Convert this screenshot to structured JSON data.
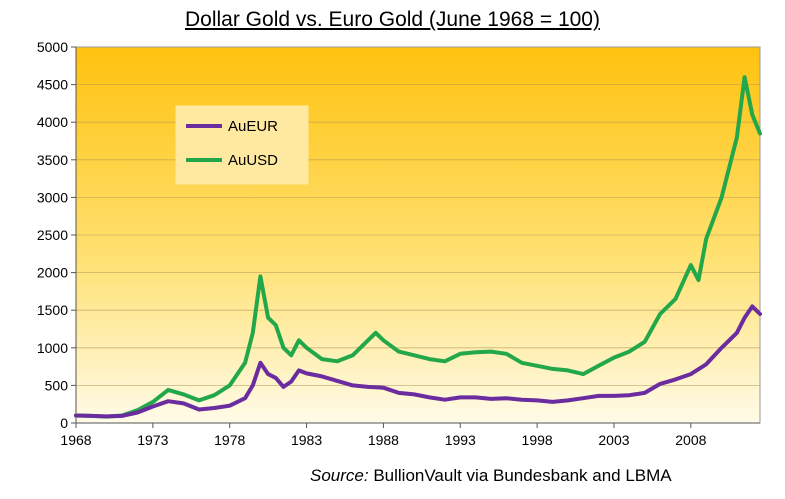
{
  "chart_data": {
    "type": "line",
    "title": "Dollar Gold vs. Euro Gold (June 1968 = 100)",
    "xlabel": "",
    "ylabel": "",
    "xlim": [
      1968,
      2012.5
    ],
    "ylim": [
      0,
      5000
    ],
    "x_ticks": [
      "1968",
      "1973",
      "1978",
      "1983",
      "1988",
      "1993",
      "1998",
      "2003",
      "2008"
    ],
    "y_ticks": [
      "0",
      "500",
      "1000",
      "1500",
      "2000",
      "2500",
      "3000",
      "3500",
      "4000",
      "4500",
      "5000"
    ],
    "grid": "horizontal",
    "legend_position": "top-left",
    "background": "yellow-gold gradient",
    "series": [
      {
        "name": "AuEUR",
        "color": "#6a2c9e",
        "points": [
          [
            1968,
            100
          ],
          [
            1969,
            95
          ],
          [
            1970,
            88
          ],
          [
            1971,
            95
          ],
          [
            1972,
            140
          ],
          [
            1973,
            220
          ],
          [
            1974,
            290
          ],
          [
            1975,
            260
          ],
          [
            1976,
            180
          ],
          [
            1977,
            200
          ],
          [
            1978,
            230
          ],
          [
            1979,
            330
          ],
          [
            1979.5,
            500
          ],
          [
            1980,
            800
          ],
          [
            1980.5,
            650
          ],
          [
            1981,
            600
          ],
          [
            1981.5,
            480
          ],
          [
            1982,
            550
          ],
          [
            1982.5,
            700
          ],
          [
            1983,
            660
          ],
          [
            1984,
            620
          ],
          [
            1985,
            560
          ],
          [
            1986,
            500
          ],
          [
            1987,
            480
          ],
          [
            1988,
            470
          ],
          [
            1989,
            400
          ],
          [
            1990,
            380
          ],
          [
            1991,
            340
          ],
          [
            1992,
            310
          ],
          [
            1993,
            340
          ],
          [
            1994,
            340
          ],
          [
            1995,
            320
          ],
          [
            1996,
            330
          ],
          [
            1997,
            310
          ],
          [
            1998,
            300
          ],
          [
            1999,
            280
          ],
          [
            2000,
            300
          ],
          [
            2001,
            330
          ],
          [
            2002,
            360
          ],
          [
            2003,
            360
          ],
          [
            2004,
            370
          ],
          [
            2005,
            400
          ],
          [
            2006,
            520
          ],
          [
            2007,
            580
          ],
          [
            2008,
            650
          ],
          [
            2009,
            780
          ],
          [
            2010,
            1000
          ],
          [
            2011,
            1200
          ],
          [
            2011.5,
            1400
          ],
          [
            2012,
            1550
          ],
          [
            2012.5,
            1450
          ]
        ]
      },
      {
        "name": "AuUSD",
        "color": "#22a84a",
        "points": [
          [
            1968,
            100
          ],
          [
            1969,
            95
          ],
          [
            1970,
            85
          ],
          [
            1971,
            100
          ],
          [
            1972,
            170
          ],
          [
            1973,
            280
          ],
          [
            1974,
            440
          ],
          [
            1975,
            380
          ],
          [
            1976,
            300
          ],
          [
            1977,
            370
          ],
          [
            1978,
            500
          ],
          [
            1979,
            800
          ],
          [
            1979.5,
            1200
          ],
          [
            1980,
            1950
          ],
          [
            1980.5,
            1400
          ],
          [
            1981,
            1300
          ],
          [
            1981.5,
            1000
          ],
          [
            1982,
            900
          ],
          [
            1982.5,
            1100
          ],
          [
            1983,
            1000
          ],
          [
            1984,
            850
          ],
          [
            1985,
            820
          ],
          [
            1986,
            900
          ],
          [
            1987,
            1100
          ],
          [
            1987.5,
            1200
          ],
          [
            1988,
            1100
          ],
          [
            1989,
            950
          ],
          [
            1990,
            900
          ],
          [
            1991,
            850
          ],
          [
            1992,
            820
          ],
          [
            1993,
            920
          ],
          [
            1994,
            940
          ],
          [
            1995,
            950
          ],
          [
            1996,
            920
          ],
          [
            1997,
            800
          ],
          [
            1998,
            760
          ],
          [
            1999,
            720
          ],
          [
            2000,
            700
          ],
          [
            2001,
            650
          ],
          [
            2002,
            760
          ],
          [
            2003,
            870
          ],
          [
            2004,
            950
          ],
          [
            2005,
            1080
          ],
          [
            2006,
            1450
          ],
          [
            2007,
            1650
          ],
          [
            2008,
            2100
          ],
          [
            2008.5,
            1900
          ],
          [
            2009,
            2450
          ],
          [
            2010,
            3000
          ],
          [
            2011,
            3800
          ],
          [
            2011.5,
            4600
          ],
          [
            2012,
            4100
          ],
          [
            2012.5,
            3850
          ]
        ]
      }
    ]
  },
  "source": {
    "label": "Source:",
    "text": " BullionVault via Bundesbank and LBMA"
  }
}
